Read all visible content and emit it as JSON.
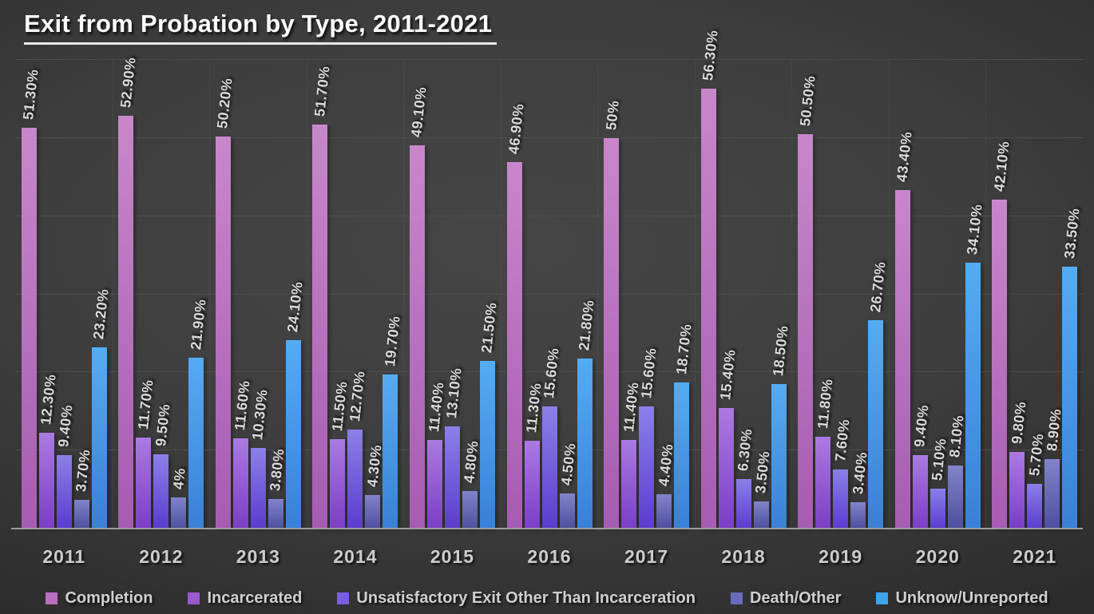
{
  "chart_data": {
    "type": "bar",
    "title": "Exit from Probation by Type, 2011-2021",
    "categories": [
      "2011",
      "2012",
      "2013",
      "2014",
      "2015",
      "2016",
      "2017",
      "2018",
      "2019",
      "2020",
      "2021"
    ],
    "series": [
      {
        "name": "Completion",
        "legend_color": "#bb6ec0",
        "gradient_top": "#c887ca",
        "gradient_bottom": "#a65cb2",
        "values": [
          51.3,
          52.9,
          50.2,
          51.7,
          49.1,
          46.9,
          50,
          56.3,
          50.5,
          43.4,
          42.1
        ],
        "labels": [
          "51.30%",
          "52.90%",
          "50.20%",
          "51.70%",
          "49.10%",
          "46.90%",
          "50%",
          "56.30%",
          "50.50%",
          "43.40%",
          "42.10%"
        ]
      },
      {
        "name": "Incarcerated",
        "legend_color": "#9a58ce",
        "gradient_top": "#ab7ae0",
        "gradient_bottom": "#7a3ec6",
        "values": [
          12.3,
          11.7,
          11.6,
          11.5,
          11.4,
          11.3,
          11.4,
          15.4,
          11.8,
          9.4,
          9.8
        ],
        "labels": [
          "12.30%",
          "11.70%",
          "11.60%",
          "11.50%",
          "11.40%",
          "11.30%",
          "11.40%",
          "15.40%",
          "11.80%",
          "9.40%",
          "9.80%"
        ]
      },
      {
        "name": "Unsatisfactory Exit Other Than Incarceration",
        "legend_color": "#7a5fdd",
        "gradient_top": "#8c80e8",
        "gradient_bottom": "#5a3ccd",
        "values": [
          9.4,
          9.5,
          10.3,
          12.7,
          13.1,
          15.6,
          15.6,
          6.3,
          7.6,
          5.1,
          5.7
        ],
        "labels": [
          "9.40%",
          "9.50%",
          "10.30%",
          "12.70%",
          "13.10%",
          "15.60%",
          "15.60%",
          "6.30%",
          "7.60%",
          "5.10%",
          "5.70%"
        ]
      },
      {
        "name": "Death/Other",
        "legend_color": "#6a6abd",
        "gradient_top": "#8184ca",
        "gradient_bottom": "#4d4f9d",
        "values": [
          3.7,
          4,
          3.8,
          4.3,
          4.8,
          4.5,
          4.4,
          3.5,
          3.4,
          8.1,
          8.9
        ],
        "labels": [
          "3.70%",
          "4%",
          "3.80%",
          "4.30%",
          "4.80%",
          "4.50%",
          "4.40%",
          "3.50%",
          "3.40%",
          "8.10%",
          "8.90%"
        ]
      },
      {
        "name": "Unknow/Unreported",
        "legend_color": "#3da3ea",
        "gradient_top": "#55acf2",
        "gradient_bottom": "#3a80d6",
        "values": [
          23.2,
          21.9,
          24.1,
          19.7,
          21.5,
          21.8,
          18.7,
          18.5,
          26.7,
          34.1,
          33.5
        ],
        "labels": [
          "23.20%",
          "21.90%",
          "24.10%",
          "19.70%",
          "21.50%",
          "21.80%",
          "18.70%",
          "18.50%",
          "26.70%",
          "34.10%",
          "33.50%"
        ]
      }
    ],
    "ylim": [
      0,
      60
    ],
    "gridline_interval_pct": 10,
    "grid": true,
    "legend_position": "bottom",
    "background_color": "#3d3d3d",
    "gridline_color": "#4d4d4d",
    "axis_line_color": "#9d9d9d",
    "label_color": "#d9d9d9"
  }
}
